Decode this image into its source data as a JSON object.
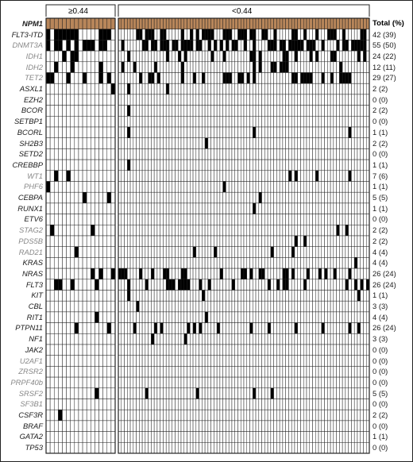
{
  "figure": {
    "groups": [
      {
        "label": "≥0.44",
        "n_cols": 17
      },
      {
        "label": "<0.44",
        "n_cols": 84
      }
    ],
    "total_header": "Total (%)",
    "header_gene": "NPM1",
    "colors": {
      "header_fill": "#b8865a",
      "mutation_fill": "#000000",
      "empty_fill": "#ffffff",
      "grid_line": "#222222",
      "label_dark": "#1a1a1a",
      "label_gray": "#888888"
    },
    "genes": [
      {
        "name": "FLT3-ITD",
        "total": "42 (39)",
        "muted": false
      },
      {
        "name": "DNMT3A",
        "total": "55 (50)",
        "muted": true
      },
      {
        "name": "IDH1",
        "total": "24 (22)",
        "muted": true
      },
      {
        "name": "IDH2",
        "total": "12 (11)",
        "muted": true
      },
      {
        "name": "TET2",
        "total": "29 (27)",
        "muted": true
      },
      {
        "name": "ASXL1",
        "total": "2 (2)",
        "muted": false
      },
      {
        "name": "EZH2",
        "total": "0 (0)",
        "muted": false
      },
      {
        "name": "BCOR",
        "total": "2 (2)",
        "muted": false
      },
      {
        "name": "SETBP1",
        "total": "0 (0)",
        "muted": false
      },
      {
        "name": "BCORL",
        "total": "1 (1)",
        "muted": false
      },
      {
        "name": "SH2B3",
        "total": "2 (2)",
        "muted": false
      },
      {
        "name": "SETD2",
        "total": "0 (0)",
        "muted": false
      },
      {
        "name": "CREBBP",
        "total": "1 (1)",
        "muted": false
      },
      {
        "name": "WT1",
        "total": "7 (6)",
        "muted": true
      },
      {
        "name": "PHF6",
        "total": "1 (1)",
        "muted": true
      },
      {
        "name": "CEBPA",
        "total": "5 (5)",
        "muted": false
      },
      {
        "name": "RUNX1",
        "total": "1 (1)",
        "muted": false
      },
      {
        "name": "ETV6",
        "total": "0 (0)",
        "muted": false
      },
      {
        "name": "STAG2",
        "total": "2 (2)",
        "muted": true
      },
      {
        "name": "PDS5B",
        "total": "2 (2)",
        "muted": true
      },
      {
        "name": "RAD21",
        "total": "4 (4)",
        "muted": true
      },
      {
        "name": "KRAS",
        "total": "4 (4)",
        "muted": false
      },
      {
        "name": "NRAS",
        "total": "26 (24)",
        "muted": false
      },
      {
        "name": "FLT3",
        "total": "26 (24)",
        "muted": false
      },
      {
        "name": "KIT",
        "total": "1 (1)",
        "muted": false
      },
      {
        "name": "CBL",
        "total": "3 (3)",
        "muted": false
      },
      {
        "name": "RIT1",
        "total": "4 (4)",
        "muted": false
      },
      {
        "name": "PTPN11",
        "total": "26 (24)",
        "muted": false
      },
      {
        "name": "NF1",
        "total": "3 (3)",
        "muted": false
      },
      {
        "name": "JAK2",
        "total": "0 (0)",
        "muted": false
      },
      {
        "name": "U2AF1",
        "total": "0 (0)",
        "muted": true
      },
      {
        "name": "ZRSR2",
        "total": "0 (0)",
        "muted": true
      },
      {
        "name": "PRPF40b",
        "total": "0 (0)",
        "muted": true
      },
      {
        "name": "SRSF2",
        "total": "5 (5)",
        "muted": true
      },
      {
        "name": "SF3B1",
        "total": "0 (0)",
        "muted": true
      },
      {
        "name": "CSF3R",
        "total": "2 (2)",
        "muted": false
      },
      {
        "name": "BRAF",
        "total": "0 (0)",
        "muted": false
      },
      {
        "name": "GATA2",
        "total": "1 (1)",
        "muted": false
      },
      {
        "name": "TP53",
        "total": "0 (0)",
        "muted": false
      }
    ]
  }
}
